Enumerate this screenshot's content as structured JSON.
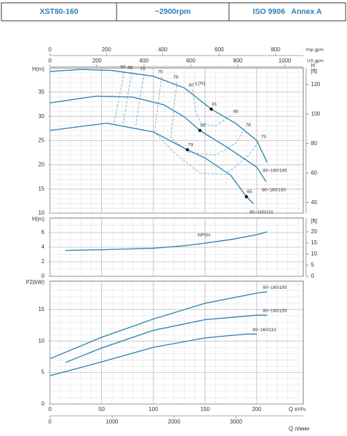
{
  "header": {
    "cells": [
      "XST80-160",
      "~2900rpm",
      "ISO 9906   Annex A"
    ]
  },
  "top_axes": [
    {
      "label": "Imp gpm",
      "xlim": [
        0,
        898.1
      ],
      "xticks": [
        0,
        200,
        400,
        600,
        800
      ]
    },
    {
      "label": "US gpm",
      "xlim": [
        0,
        1078.7
      ],
      "xticks": [
        0,
        200,
        400,
        600,
        800,
        1000
      ]
    }
  ],
  "bottom_axes": [
    {
      "label": "Q  m³/ч"
    },
    {
      "label": "Q  л/мин",
      "xlim": [
        0,
        4083
      ],
      "xticks": [
        0,
        1000,
        2000,
        3000
      ]
    }
  ],
  "chart_data": [
    {
      "type": "line",
      "ylabel": "H(m)",
      "y2label": "H",
      "y2unit": "[ft]",
      "eff_label": "η [%]",
      "xlim": [
        0,
        245
      ],
      "xticks": [
        0,
        50,
        100,
        150,
        200
      ],
      "ylim": [
        10,
        40
      ],
      "yticks": [
        10,
        15,
        20,
        25,
        30,
        35
      ],
      "y2lim": [
        32.8,
        131.2
      ],
      "y2ticks": [
        40,
        60,
        80,
        100,
        120
      ],
      "x_minor_divisions": 5,
      "y_minor_divisions": 5,
      "series": [
        {
          "name": "80~160/185",
          "color": "#2e86b0",
          "x": [
            0,
            30,
            60,
            100,
            130,
            156,
            180,
            200,
            210
          ],
          "values": [
            39.3,
            39.7,
            39.5,
            38.3,
            35.9,
            31.5,
            28.5,
            25.0,
            20.5
          ]
        },
        {
          "name": "80~160/150",
          "color": "#2e86b0",
          "x": [
            0,
            45,
            80,
            110,
            130,
            145,
            170,
            200,
            209
          ],
          "values": [
            32.8,
            34.2,
            34.0,
            32.4,
            29.9,
            27.1,
            23.8,
            19.5,
            16.5
          ]
        },
        {
          "name": "80~160/110",
          "color": "#2e86b0",
          "x": [
            0,
            55,
            100,
            133,
            150,
            175,
            190,
            197
          ],
          "values": [
            27.1,
            28.6,
            26.8,
            23.1,
            21.4,
            17.8,
            13.4,
            11.9
          ]
        }
      ],
      "efficiency_curves": [
        {
          "label": "60",
          "q": [
            72,
            67,
            62
          ],
          "h": [
            39.3,
            34,
            28.6
          ]
        },
        {
          "label": "65",
          "q": [
            79,
            75,
            71
          ],
          "h": [
            39.2,
            34,
            28.5
          ]
        },
        {
          "label": "70",
          "q": [
            91,
            87,
            83
          ],
          "h": [
            38.9,
            33.7,
            28
          ]
        },
        {
          "label": "75",
          "q": [
            108,
            105,
            101,
            120,
            145,
            170,
            190,
            203
          ],
          "h": [
            38.3,
            33,
            26.8,
            22.5,
            18.3,
            18,
            21.5,
            25
          ]
        },
        {
          "label": "78",
          "q": [
            123,
            120,
            117,
            135,
            160,
            180,
            188
          ],
          "h": [
            37.2,
            32,
            25.5,
            22.5,
            22,
            24.5,
            27.5
          ]
        },
        {
          "label": "80",
          "q": [
            138,
            141,
            146,
            160,
            176
          ],
          "h": [
            35.6,
            31,
            28.5,
            28,
            30.3
          ]
        }
      ],
      "points": [
        {
          "label": "81",
          "q": 156,
          "h": 31.5
        },
        {
          "label": "80",
          "q": 145,
          "h": 27.1
        },
        {
          "label": "79",
          "q": 133,
          "h": 23.1
        },
        {
          "label": "65",
          "q": 190,
          "h": 13.4
        }
      ]
    },
    {
      "type": "line",
      "ylabel": "H(m)",
      "y2unit": "[ft]",
      "xlim": [
        0,
        245
      ],
      "xticks": [
        0,
        50,
        100,
        150,
        200
      ],
      "ylim": [
        0,
        8
      ],
      "yticks": [
        0,
        2,
        4,
        6
      ],
      "y2lim": [
        0,
        26.24
      ],
      "y2ticks": [
        0,
        5,
        10,
        15,
        20
      ],
      "x_minor_divisions": 5,
      "y_minor_divisions": 2,
      "series": [
        {
          "name": "NPSH",
          "color": "#2e86b0",
          "x": [
            15,
            50,
            100,
            130,
            150,
            175,
            200,
            210
          ],
          "values": [
            3.55,
            3.65,
            3.85,
            4.2,
            4.55,
            5.05,
            5.7,
            6.1
          ]
        }
      ]
    },
    {
      "type": "line",
      "ylabel": "P2(kW)",
      "xlim": [
        0,
        245
      ],
      "xticks": [
        0,
        50,
        100,
        150,
        200
      ],
      "ylim": [
        0,
        19.5
      ],
      "yticks": [
        0,
        5,
        10,
        15
      ],
      "x_minor_divisions": 5,
      "y_minor_divisions": 5,
      "series": [
        {
          "name": "80~160/185",
          "color": "#2e86b0",
          "x": [
            0,
            50,
            100,
            150,
            200,
            210
          ],
          "values": [
            7.2,
            10.6,
            13.5,
            16.0,
            17.6,
            17.8
          ]
        },
        {
          "name": "80~160/150",
          "color": "#2e86b0",
          "x": [
            15,
            50,
            100,
            150,
            200,
            210
          ],
          "values": [
            6.6,
            8.9,
            11.7,
            13.4,
            14.1,
            14.1
          ]
        },
        {
          "name": "80~160/110",
          "color": "#2e86b0",
          "x": [
            0,
            50,
            100,
            150,
            190,
            200
          ],
          "values": [
            4.5,
            6.7,
            9.0,
            10.5,
            11.1,
            11.1
          ]
        }
      ]
    }
  ]
}
